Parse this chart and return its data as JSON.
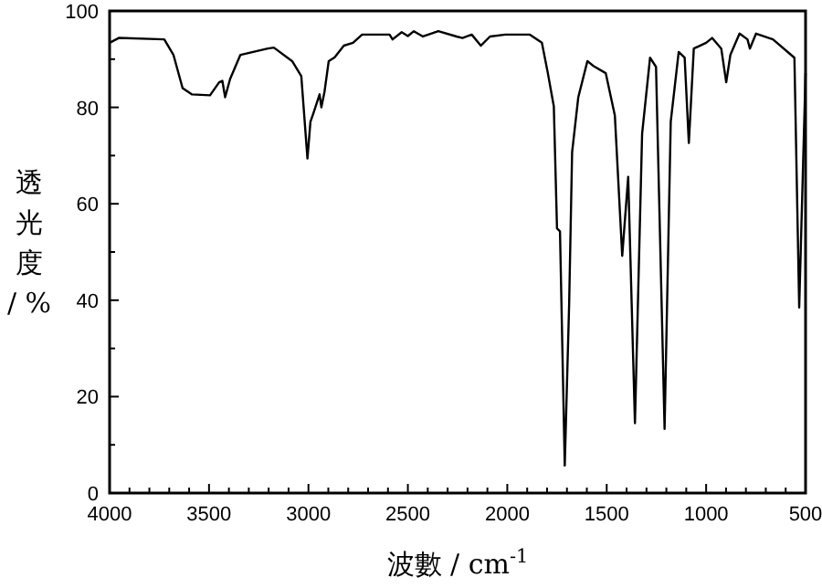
{
  "chart_data": {
    "type": "line",
    "xlabel": "波數 / cm$^{-1}$",
    "ylabel": "透光度 / %",
    "xlim": [
      4000,
      500
    ],
    "ylim": [
      0,
      100
    ],
    "xticks": [
      4000,
      {
        "value": 3900,
        "label": null
      },
      {
        "value": 3800,
        "label": null
      },
      {
        "value": 3700,
        "label": null
      },
      {
        "value": 3600,
        "label": null
      },
      3500,
      {
        "value": 3400,
        "label": null
      },
      {
        "value": 3300,
        "label": null
      },
      {
        "value": 3200,
        "label": null
      },
      {
        "value": 3100,
        "label": null
      },
      3000,
      {
        "value": 2900,
        "label": null
      },
      {
        "value": 2800,
        "label": null
      },
      {
        "value": 2700,
        "label": null
      },
      {
        "value": 2600,
        "label": null
      },
      2500,
      {
        "value": 2400,
        "label": null
      },
      {
        "value": 2300,
        "label": null
      },
      {
        "value": 2200,
        "label": null
      },
      {
        "value": 2100,
        "label": null
      },
      2000,
      {
        "value": 1900,
        "label": null
      },
      {
        "value": 1800,
        "label": null
      },
      {
        "value": 1700,
        "label": null
      },
      {
        "value": 1600,
        "label": null
      },
      1500,
      {
        "value": 1400,
        "label": null
      },
      {
        "value": 1300,
        "label": null
      },
      {
        "value": 1200,
        "label": null
      },
      {
        "value": 1100,
        "label": null
      },
      1000,
      {
        "value": 900,
        "label": null
      },
      {
        "value": 800,
        "label": null
      },
      {
        "value": 700,
        "label": null
      },
      {
        "value": 600,
        "label": null
      },
      500
    ],
    "yticks": [
      0,
      {
        "value": 10,
        "label": null
      },
      20,
      {
        "value": 30,
        "label": null
      },
      40,
      {
        "value": 50,
        "label": null
      },
      60,
      {
        "value": 70,
        "label": null
      },
      80,
      {
        "value": 90,
        "label": null
      },
      100
    ],
    "grid": false,
    "marker": "none",
    "line_style": "solid",
    "series": [
      {
        "color": "#000000",
        "x": [
          4000,
          3954,
          3725,
          3679,
          3633,
          3587,
          3495,
          3449,
          3433,
          3419,
          3394,
          3342,
          3204,
          3174,
          3082,
          3036,
          3005,
          2990,
          2974,
          2959,
          2944,
          2935,
          2919,
          2898,
          2868,
          2822,
          2776,
          2730,
          2592,
          2577,
          2531,
          2500,
          2470,
          2424,
          2347,
          2255,
          2225,
          2179,
          2133,
          2087,
          2010,
          1888,
          1826,
          1796,
          1766,
          1750,
          1735,
          1711,
          1689,
          1674,
          1643,
          1597,
          1567,
          1505,
          1459,
          1422,
          1392,
          1358,
          1322,
          1282,
          1252,
          1209,
          1178,
          1138,
          1108,
          1087,
          1062,
          1000,
          970,
          924,
          899,
          878,
          832,
          792,
          780,
          749,
          664,
          556,
          532,
          500
        ],
        "values": [
          93.4,
          94.4,
          94.1,
          90.9,
          84,
          82.7,
          82.5,
          85.2,
          85.5,
          82.1,
          85.9,
          90.9,
          92.2,
          92.4,
          89.6,
          86.5,
          69.4,
          77,
          78.9,
          80.8,
          82.7,
          80,
          83.3,
          89.6,
          90.4,
          92.8,
          93.4,
          95.1,
          95.1,
          94.1,
          95.6,
          94.8,
          95.8,
          94.7,
          95.8,
          94.7,
          94.4,
          95.1,
          92.8,
          94.7,
          95.1,
          95.1,
          93.4,
          87.1,
          80.2,
          54.9,
          54.3,
          5.7,
          39.1,
          70.7,
          82.1,
          89.6,
          88.6,
          87.1,
          78.3,
          49.2,
          65.6,
          14.5,
          74.5,
          90.3,
          88.4,
          13.3,
          77,
          91.5,
          90.3,
          72.6,
          92.2,
          93.4,
          94.4,
          92.2,
          85.2,
          90.9,
          95.3,
          94.1,
          92.2,
          95.3,
          94.1,
          90.3,
          38.5,
          87.1
        ]
      }
    ]
  }
}
